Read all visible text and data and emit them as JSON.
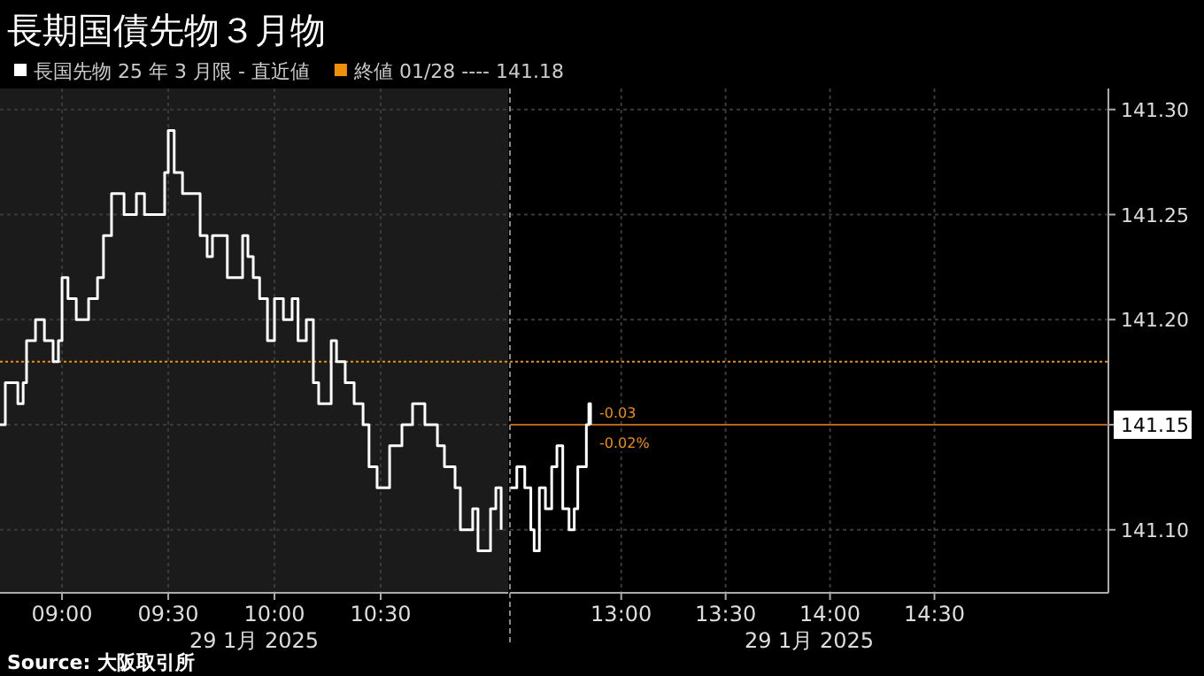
{
  "chart_data": [
    {
      "type": "step",
      "title": "長期国債先物３月物",
      "xlabel": "29 1月 2025",
      "legend": "top",
      "grid": true,
      "tick_labels": "x",
      "xlim": [
        8.708,
        11.1
      ],
      "xticks": [
        {
          "value": 9,
          "label": "09:00"
        },
        {
          "value": 9.5,
          "label": "09:30"
        },
        {
          "value": 10,
          "label": "10:00"
        },
        {
          "value": 10.5,
          "label": "10:30"
        }
      ],
      "ylim": [
        141.07,
        141.31
      ],
      "yticks": [
        141.1,
        141.15,
        141.2,
        141.25,
        141.3
      ],
      "series": [
        {
          "name": "長国先物 25 年 3 月限 - 直近値",
          "color": "#ffffff",
          "x": [
            8.708,
            8.733,
            8.792,
            8.817,
            8.833,
            8.875,
            8.917,
            8.958,
            8.983,
            9.0,
            9.028,
            9.067,
            9.125,
            9.167,
            9.195,
            9.233,
            9.292,
            9.35,
            9.388,
            9.467,
            9.483,
            9.5,
            9.528,
            9.567,
            9.625,
            9.65,
            9.683,
            9.708,
            9.767,
            9.778,
            9.817,
            9.85,
            9.875,
            9.9,
            9.93,
            9.967,
            10.0,
            10.042,
            10.083,
            10.111,
            10.15,
            10.183,
            10.208,
            10.267,
            10.292,
            10.333,
            10.375,
            10.417,
            10.445,
            10.483,
            10.542,
            10.6,
            10.65,
            10.708,
            10.767,
            10.8,
            10.85,
            10.875,
            10.933,
            10.958,
            11.017,
            11.042,
            11.067
          ],
          "values": [
            141.15,
            141.17,
            141.16,
            141.17,
            141.19,
            141.2,
            141.19,
            141.18,
            141.19,
            141.22,
            141.21,
            141.2,
            141.21,
            141.22,
            141.24,
            141.26,
            141.25,
            141.26,
            141.25,
            141.25,
            141.27,
            141.29,
            141.27,
            141.26,
            141.26,
            141.24,
            141.23,
            141.24,
            141.24,
            141.22,
            141.22,
            141.24,
            141.23,
            141.22,
            141.21,
            141.19,
            141.21,
            141.2,
            141.21,
            141.19,
            141.2,
            141.17,
            141.16,
            141.19,
            141.18,
            141.17,
            141.16,
            141.15,
            141.13,
            141.12,
            141.14,
            141.15,
            141.16,
            141.15,
            141.14,
            141.13,
            141.12,
            141.1,
            141.11,
            141.09,
            141.11,
            141.12,
            141.1
          ]
        }
      ],
      "ref_lines": [
        {
          "axis": "y",
          "value": 141.18,
          "label": "終値 01/28 ---- 141.18",
          "color": "#f0900a",
          "line_style": "dotted"
        }
      ],
      "annotations": [
        "Source: 大阪取引所"
      ]
    },
    {
      "type": "step",
      "xlabel": "29 1月 2025",
      "grid": true,
      "xlim": [
        12.467,
        15.333
      ],
      "xticks": [
        {
          "value": 13,
          "label": "13:00"
        },
        {
          "value": 13.5,
          "label": "13:30"
        },
        {
          "value": 14,
          "label": "14:00"
        },
        {
          "value": 14.5,
          "label": "14:30"
        }
      ],
      "ylim": [
        141.07,
        141.31
      ],
      "yticks": [
        {
          "value": 141.1,
          "label": "141.10"
        },
        141.15,
        {
          "value": 141.2,
          "label": "141.20"
        },
        141.25,
        {
          "value": 141.3,
          "label": "141.30"
        }
      ],
      "series": [
        {
          "color": "#ffffff",
          "x": [
            12.47,
            12.5,
            12.538,
            12.567,
            12.583,
            12.608,
            12.637,
            12.667,
            12.692,
            12.72,
            12.75,
            12.775,
            12.792,
            12.833,
            12.845,
            12.853
          ],
          "values": [
            141.12,
            141.13,
            141.12,
            141.1,
            141.09,
            141.12,
            141.11,
            141.13,
            141.14,
            141.11,
            141.1,
            141.11,
            141.13,
            141.15,
            141.16,
            141.15
          ]
        }
      ],
      "ref_lines": [
        {
          "axis": "y",
          "value": 141.18,
          "color": "#f0900a",
          "line_style": "dotted"
        },
        {
          "axis": "y",
          "value": 141.15,
          "color": "#b5651d",
          "line_style": "solid"
        }
      ],
      "annotations": [
        "-0.03",
        "-0.02%"
      ]
    }
  ]
}
